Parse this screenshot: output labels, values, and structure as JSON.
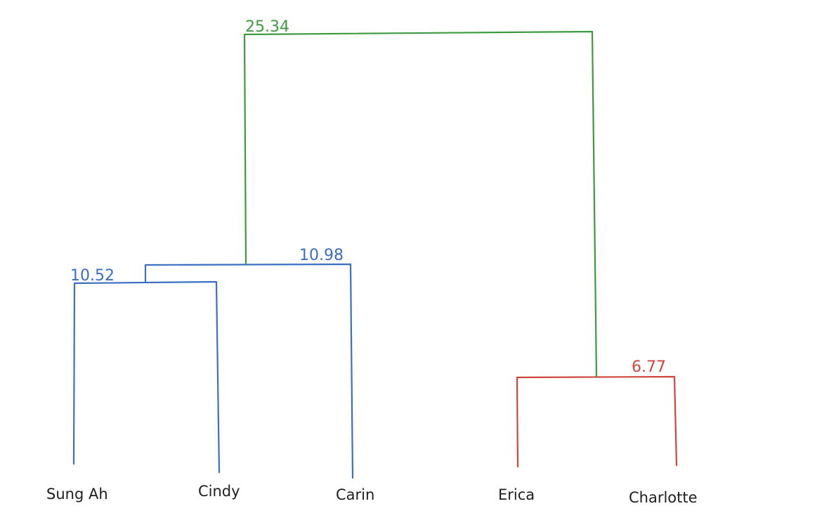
{
  "colors": {
    "blue": "#3a6fc4",
    "green": "#3e9a3e",
    "red": "#d0453c"
  },
  "leaves": [
    {
      "label": "Sung Ah"
    },
    {
      "label": "Cindy"
    },
    {
      "label": "Carin"
    },
    {
      "label": "Erica"
    },
    {
      "label": "Charlotte"
    }
  ],
  "merges": [
    {
      "label": "10.52",
      "value": 10.52,
      "left": "Sung Ah",
      "right": "Cindy",
      "color": "blue"
    },
    {
      "label": "10.98",
      "value": 10.98,
      "left": "Sung Ah + Cindy",
      "right": "Carin",
      "color": "blue"
    },
    {
      "label": "6.77",
      "value": 6.77,
      "left": "Erica",
      "right": "Charlotte",
      "color": "red"
    },
    {
      "label": "25.34",
      "value": 25.34,
      "left": "Sung Ah + Cindy + Carin",
      "right": "Erica + Charlotte",
      "color": "green"
    }
  ]
}
